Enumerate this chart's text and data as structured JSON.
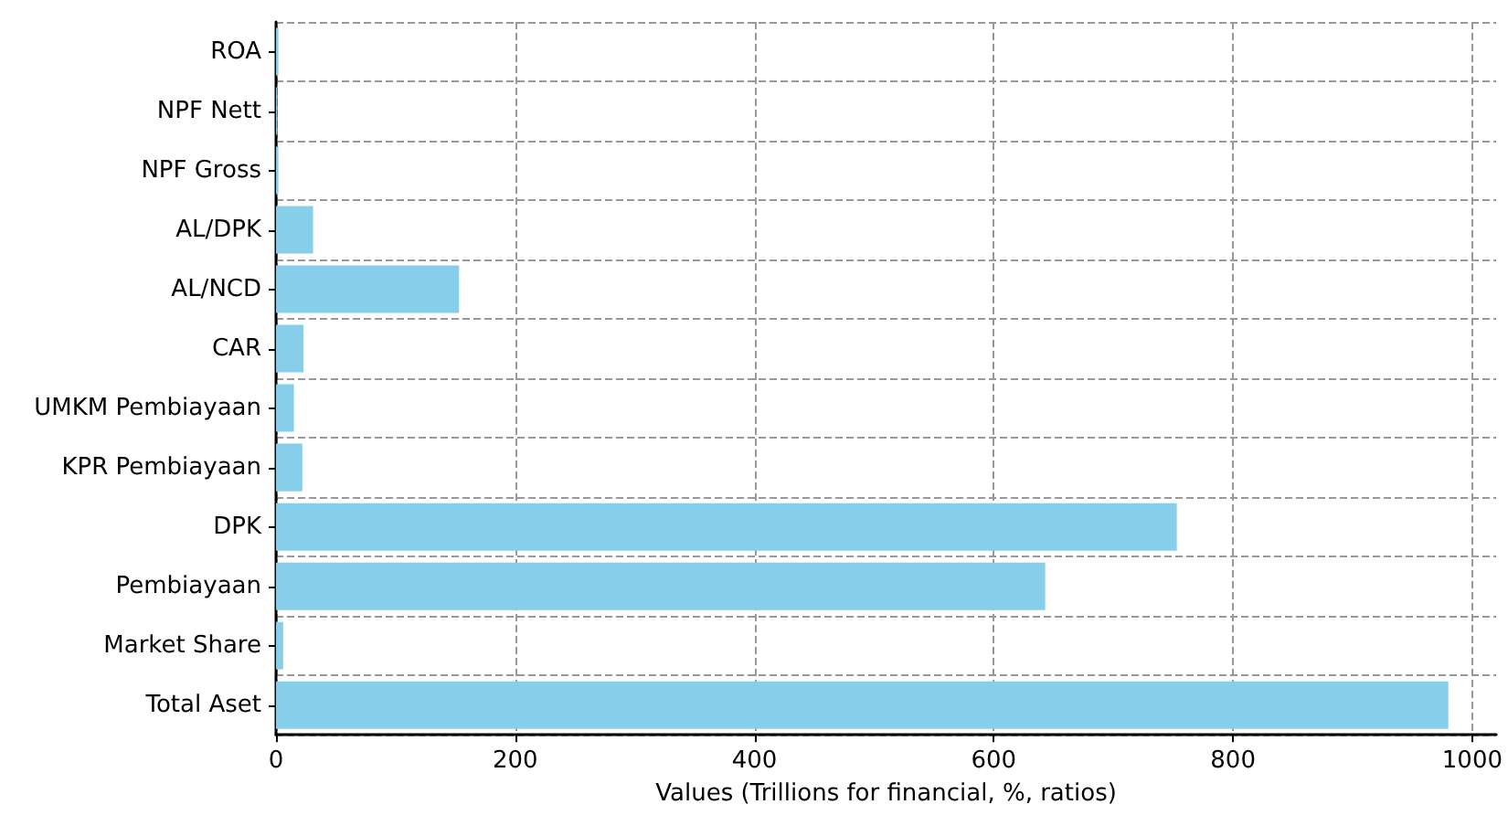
{
  "chart_data": {
    "type": "bar",
    "orientation": "horizontal",
    "xlabel": "Values (Trillions for financial, %, ratios)",
    "categories": [
      "ROA",
      "NPF Nett",
      "NPF Gross",
      "AL/DPK",
      "AL/NCD",
      "CAR",
      "UMKM Pembiayaan",
      "KPR Pembiayaan",
      "DPK",
      "Pembiayaan",
      "Market Share",
      "Total Aset"
    ],
    "values": [
      2,
      1,
      2,
      31,
      153,
      23,
      15,
      22,
      753,
      643,
      6,
      980
    ],
    "color": "#87ceeb",
    "xlim": [
      0,
      1020
    ],
    "xticks": [
      0,
      200,
      400,
      600,
      800,
      1000
    ],
    "grid": true
  }
}
